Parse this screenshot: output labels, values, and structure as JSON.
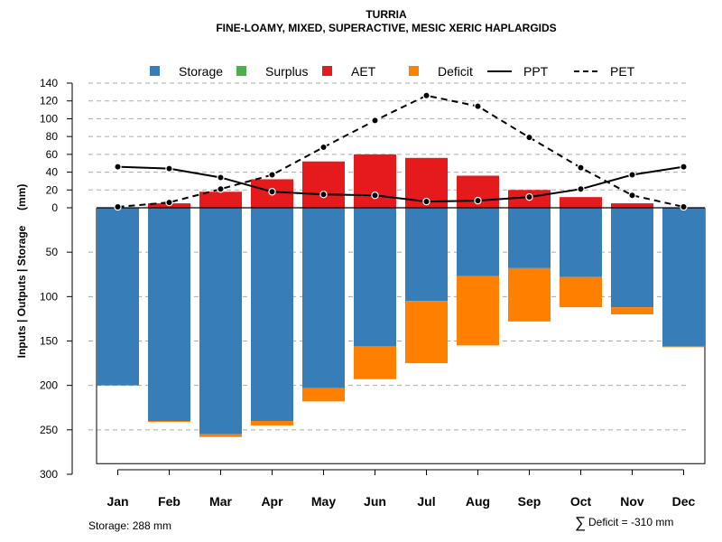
{
  "chart_data": {
    "type": "bar",
    "title": "TURRIA",
    "subtitle": "FINE-LOAMY, MIXED, SUPERACTIVE, MESIC XERIC HAPLARGIDS",
    "xlabel": "",
    "ylabel": "Inputs | Outputs | Storage     (mm)",
    "categories": [
      "Jan",
      "Feb",
      "Mar",
      "Apr",
      "May",
      "Jun",
      "Jul",
      "Aug",
      "Sep",
      "Oct",
      "Nov",
      "Dec"
    ],
    "upper_axis": {
      "range": [
        0,
        140
      ],
      "ticks": [
        "0",
        "20",
        "40",
        "60",
        "80",
        "100",
        "120",
        "140"
      ]
    },
    "lower_axis": {
      "range": [
        0,
        300
      ],
      "ticks": [
        "50",
        "100",
        "150",
        "200",
        "250",
        "300"
      ]
    },
    "series": [
      {
        "name": "Storage",
        "color": "#377EB8",
        "values": [
          200,
          240,
          255,
          240,
          203,
          156,
          105,
          77,
          68,
          78,
          112,
          156
        ]
      },
      {
        "name": "Surplus",
        "color": "#4DAF4A",
        "values": [
          0,
          0,
          0,
          0,
          0,
          0,
          0,
          0,
          0,
          0,
          0,
          0
        ]
      },
      {
        "name": "AET",
        "color": "#E41A1C",
        "values": [
          0,
          5,
          18,
          32,
          52,
          60,
          56,
          36,
          20,
          12,
          5,
          0
        ]
      },
      {
        "name": "Deficit",
        "color": "#FF7F00",
        "values": [
          0,
          1,
          3,
          5,
          15,
          37,
          70,
          78,
          60,
          34,
          8,
          1
        ]
      },
      {
        "name": "PPT",
        "color": "#000000",
        "style": "solid",
        "values": [
          46,
          44,
          34,
          18,
          15,
          14,
          7,
          8,
          12,
          21,
          37,
          46
        ]
      },
      {
        "name": "PET",
        "color": "#000000",
        "style": "dashed",
        "values": [
          1,
          6,
          21,
          37,
          68,
          98,
          126,
          114,
          79,
          45,
          14,
          1
        ]
      }
    ],
    "legend_position": "top",
    "grid": true
  },
  "legend": {
    "storage": "Storage",
    "surplus": "Surplus",
    "aet": "AET",
    "deficit": "Deficit",
    "ppt": "PPT",
    "pet": "PET"
  },
  "footer": {
    "storage_text": "Storage: 288 mm",
    "deficit_symbol": "∑",
    "deficit_text": "Deficit = -310 mm"
  },
  "storage_total": 288,
  "colors": {
    "storage": "#377EB8",
    "surplus": "#4DAF4A",
    "aet": "#E41A1C",
    "deficit": "#FF7F00",
    "grid": "#aaaaaa"
  }
}
